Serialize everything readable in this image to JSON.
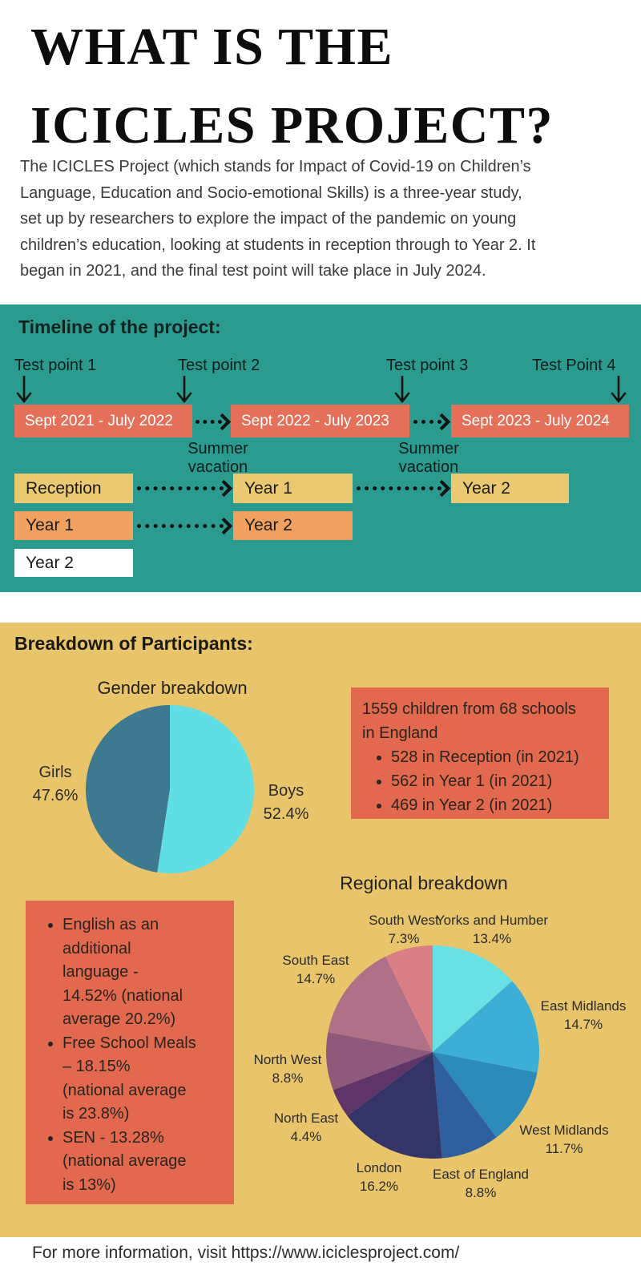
{
  "header": {
    "title_line1": "WHAT IS THE",
    "title_line2": "ICICLES PROJECT?",
    "intro": "The ICICLES Project (which stands for Impact of Covid-19 on Children’s\nLanguage, Education and Socio-emotional Skills) is a three-year study,\nset up by researchers to explore the impact of the pandemic on young\nchildren’s education, looking at students in reception through to Year 2. It\nbegan in 2021, and the final test point will take place in July 2024."
  },
  "timeline": {
    "heading": "Timeline of the project:",
    "test_points": [
      "Test point 1",
      "Test point 2",
      "Test point 3",
      "Test Point 4"
    ],
    "periods": [
      "Sept 2021 - July 2022",
      "Sept 2022 - July 2023",
      "Sept 2023 - July 2024"
    ],
    "summer_labels": [
      "Summer vacation",
      "Summer vacation"
    ],
    "cohort_rows": [
      {
        "style": "yellow",
        "cells": [
          "Reception",
          "Year 1",
          "Year 2"
        ]
      },
      {
        "style": "orange",
        "cells": [
          "Year 1",
          "Year 2"
        ]
      },
      {
        "style": "white",
        "cells": [
          "Year 2"
        ]
      }
    ]
  },
  "participants": {
    "heading": "Breakdown of Participants:",
    "totals_box": {
      "heading": "1559 children from 68 schools\nin England",
      "bullets": [
        "528 in Reception (in 2021)",
        "562 in Year 1 (in 2021)",
        "469 in Year 2 (in 2021)"
      ]
    },
    "stats_box": {
      "bullets": [
        "English as an\nadditional\nlanguage -\n14.52% (national\naverage 20.2%)",
        "Free School Meals\n– 18.15%\n(national average\nis 23.8%)",
        "SEN - 13.28%\n(national average\nis 13%)"
      ]
    }
  },
  "footer": {
    "text": "For more information, visit https://www.iciclesproject.com/"
  },
  "colors": {
    "teal_section": "#2A9B8E",
    "yellow_section": "#E8C46A",
    "salmon_box": "#E2684E",
    "timeline_salmon": "#E4705A",
    "cohort_yellow": "#EBC973",
    "cohort_orange": "#F0A160",
    "cohort_white": "#FFFFFF"
  },
  "chart_data": [
    {
      "type": "pie",
      "title": "Gender breakdown",
      "legend_position": "outside-labels",
      "slices": [
        {
          "label": "Boys",
          "value": 52.4,
          "pct_text": "52.4%",
          "color": "#5FDFE4"
        },
        {
          "label": "Girls",
          "value": 47.6,
          "pct_text": "47.6%",
          "color": "#3D7A90"
        }
      ]
    },
    {
      "type": "pie",
      "title": "Regional breakdown",
      "legend_position": "outside-labels",
      "slices": [
        {
          "label": "Yorks and Humber",
          "value": 13.4,
          "pct_text": "13.4%",
          "color": "#68E1E3"
        },
        {
          "label": "East Midlands",
          "value": 14.7,
          "pct_text": "14.7%",
          "color": "#3BAFD6"
        },
        {
          "label": "West Midlands",
          "value": 11.7,
          "pct_text": "11.7%",
          "color": "#2C8BB9"
        },
        {
          "label": "East of England",
          "value": 8.8,
          "pct_text": "8.8%",
          "color": "#2F5F9E"
        },
        {
          "label": "London",
          "value": 16.2,
          "pct_text": "16.2%",
          "color": "#333467"
        },
        {
          "label": "North East",
          "value": 4.4,
          "pct_text": "4.4%",
          "color": "#5F3468"
        },
        {
          "label": "North West",
          "value": 8.8,
          "pct_text": "8.8%",
          "color": "#8E5A7B"
        },
        {
          "label": "South East",
          "value": 14.7,
          "pct_text": "14.7%",
          "color": "#B07088"
        },
        {
          "label": "South West",
          "value": 7.3,
          "pct_text": "7.3%",
          "color": "#DB7F86"
        }
      ]
    }
  ]
}
